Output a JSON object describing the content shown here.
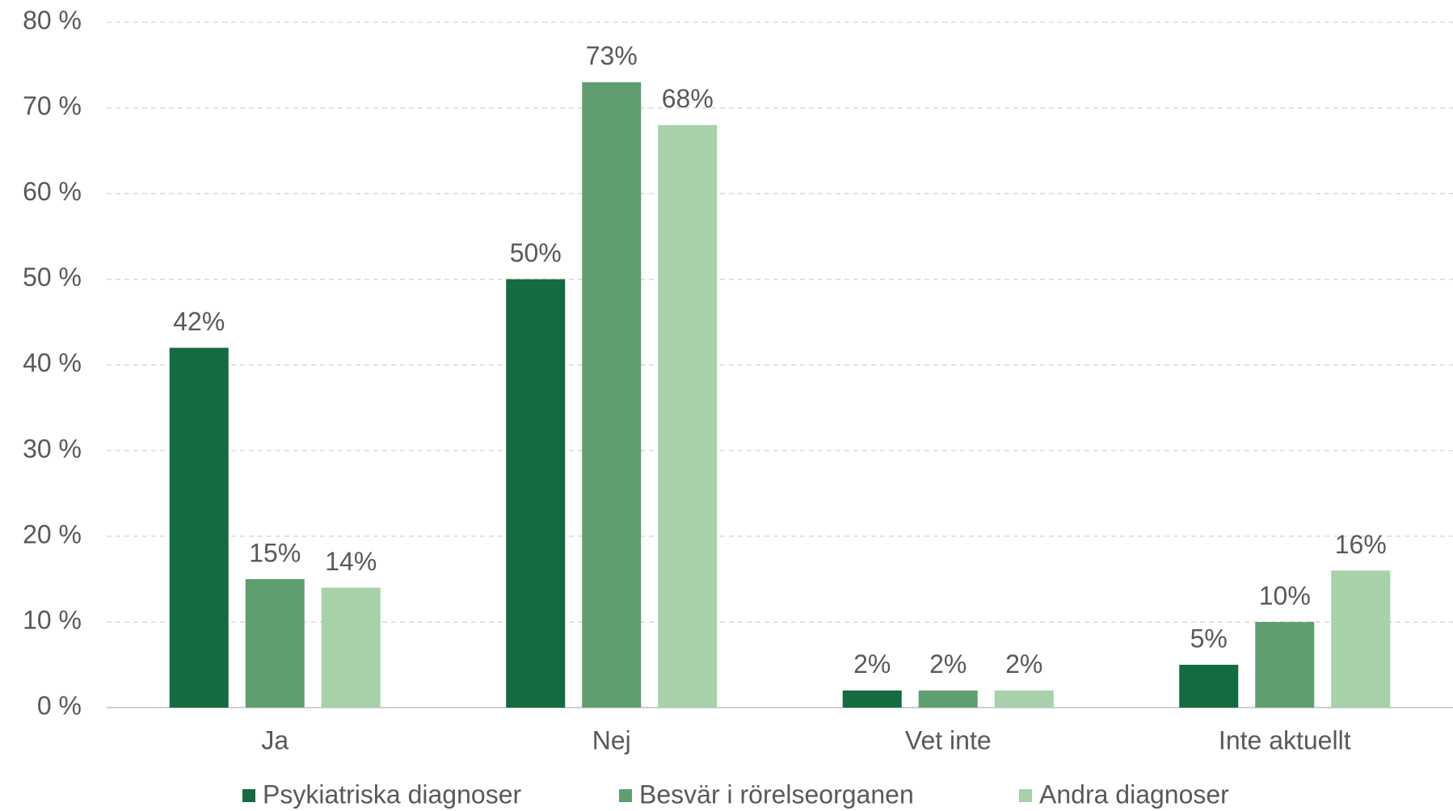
{
  "chart_data": {
    "type": "bar",
    "categories": [
      "Ja",
      "Nej",
      "Vet inte",
      "Inte aktuellt"
    ],
    "series": [
      {
        "name": "Psykiatriska diagnoser",
        "color": "#136b3f",
        "values": [
          42,
          50,
          2,
          5
        ],
        "value_labels": [
          "42%",
          "50%",
          "2%",
          "5%"
        ]
      },
      {
        "name": "Besvär i rörelseorganen",
        "color": "#5f9e6e",
        "values": [
          15,
          73,
          2,
          10
        ],
        "value_labels": [
          "15%",
          "73%",
          "2%",
          "10%"
        ]
      },
      {
        "name": "Andra diagnoser",
        "color": "#a7d1a9",
        "values": [
          14,
          68,
          2,
          16
        ],
        "value_labels": [
          "14%",
          "68%",
          "2%",
          "16%"
        ]
      }
    ],
    "ylim": [
      0,
      80
    ],
    "yticks": [
      {
        "value": 0,
        "label": "0 %"
      },
      {
        "value": 10,
        "label": "10 %"
      },
      {
        "value": 20,
        "label": "20 %"
      },
      {
        "value": 30,
        "label": "30 %"
      },
      {
        "value": 40,
        "label": "40 %"
      },
      {
        "value": 50,
        "label": "50 %"
      },
      {
        "value": 60,
        "label": "60 %"
      },
      {
        "value": 70,
        "label": "70 %"
      },
      {
        "value": 80,
        "label": "80 %"
      }
    ],
    "grid": true,
    "legend": "bottom"
  }
}
